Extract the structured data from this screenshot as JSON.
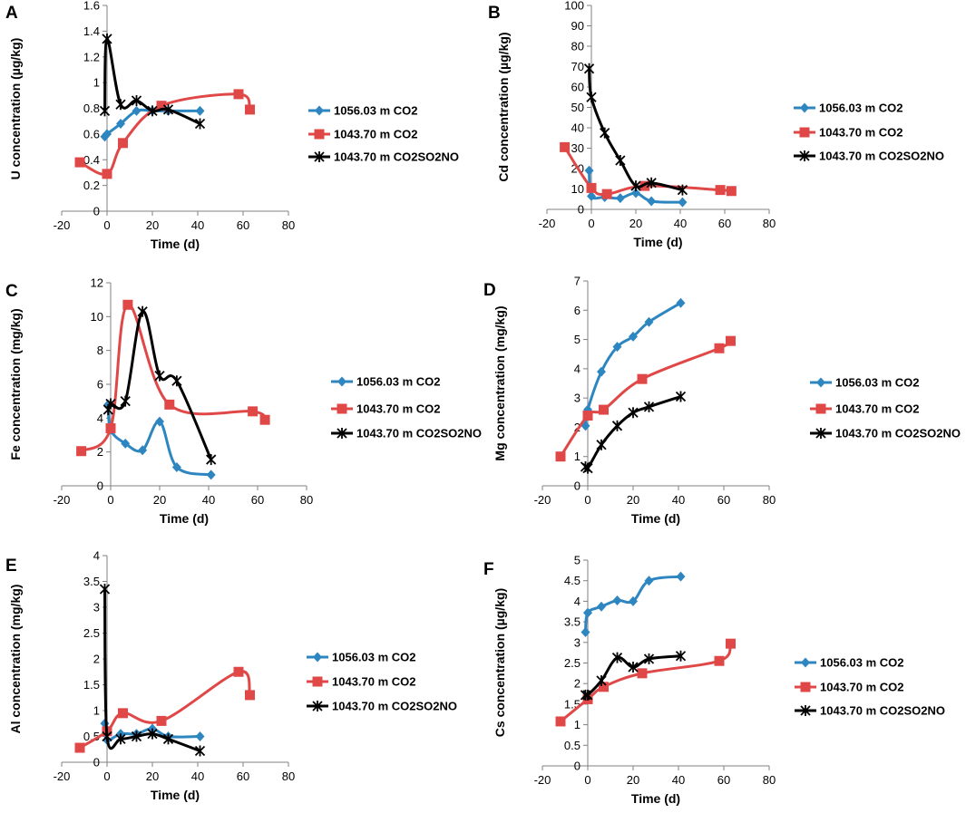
{
  "colors": {
    "blue": "#2E86C1",
    "red": "#E04848",
    "black": "#000000",
    "axis": "#808080"
  },
  "chart_data": [
    {
      "type": "line",
      "panel": "A",
      "xlabel": "Time (d)",
      "ylabel": "U concentration (µg/kg)",
      "xlim": [
        -20,
        80
      ],
      "xticks": [
        -20,
        0,
        20,
        40,
        60,
        80
      ],
      "ylim": [
        0,
        1.6
      ],
      "yticks": [
        0,
        0.2,
        0.4,
        0.6,
        0.8,
        1,
        1.2,
        1.4,
        1.6
      ],
      "series": [
        {
          "name": "1056.03 m CO2",
          "x": [
            -1,
            0,
            6,
            13,
            20,
            27,
            41
          ],
          "y": [
            0.58,
            0.6,
            0.68,
            0.78,
            0.78,
            0.78,
            0.78
          ]
        },
        {
          "name": "1043.70 m CO2",
          "x": [
            -12,
            0,
            7,
            24,
            58,
            63
          ],
          "y": [
            0.38,
            0.29,
            0.53,
            0.82,
            0.91,
            0.79
          ]
        },
        {
          "name": "1043.70 m CO2SO2NO",
          "x": [
            -1,
            0,
            6,
            13,
            20,
            27,
            41
          ],
          "y": [
            0.78,
            1.34,
            0.83,
            0.86,
            0.78,
            0.79,
            0.68
          ]
        }
      ]
    },
    {
      "type": "line",
      "panel": "B",
      "xlabel": "Time (d)",
      "ylabel": "Cd concentration (µg/kg)",
      "xlim": [
        -20,
        80
      ],
      "xticks": [
        -20,
        0,
        20,
        40,
        60,
        80
      ],
      "ylim": [
        0,
        100
      ],
      "yticks": [
        0,
        10,
        20,
        30,
        40,
        50,
        60,
        70,
        80,
        90,
        100
      ],
      "series": [
        {
          "name": "1056.03 m CO2",
          "x": [
            -1,
            0,
            6,
            13,
            20,
            27,
            41
          ],
          "y": [
            19,
            6.5,
            6,
            5.5,
            8,
            4,
            3.5
          ]
        },
        {
          "name": "1043.70 m CO2",
          "x": [
            -12,
            0,
            7,
            24,
            58,
            63
          ],
          "y": [
            30.5,
            10.5,
            7.5,
            11.5,
            9.5,
            9
          ]
        },
        {
          "name": "1043.70 m CO2SO2NO",
          "x": [
            -1,
            0,
            6,
            13,
            20,
            27,
            41
          ],
          "y": [
            69,
            55,
            37.5,
            24,
            11.5,
            13,
            9.5
          ]
        }
      ]
    },
    {
      "type": "line",
      "panel": "C",
      "xlabel": "Time (d)",
      "ylabel": "Fe concentration (mg/kg)",
      "xlim": [
        -20,
        80
      ],
      "xticks": [
        -20,
        0,
        20,
        40,
        60,
        80
      ],
      "ylim": [
        0,
        12
      ],
      "yticks": [
        0,
        2,
        4,
        6,
        8,
        10,
        12
      ],
      "series": [
        {
          "name": "1056.03 m CO2",
          "x": [
            -1,
            0,
            6,
            13,
            20,
            27,
            41
          ],
          "y": [
            4.8,
            3.3,
            2.5,
            2.1,
            3.8,
            1.1,
            0.65
          ]
        },
        {
          "name": "1043.70 m CO2",
          "x": [
            -12,
            0,
            7,
            24,
            58,
            63
          ],
          "y": [
            2.05,
            3.4,
            10.7,
            4.8,
            4.4,
            3.9
          ]
        },
        {
          "name": "1043.70 m CO2SO2NO",
          "x": [
            -1,
            0,
            6,
            13,
            20,
            27,
            41
          ],
          "y": [
            4.5,
            4.85,
            5.0,
            10.3,
            6.5,
            6.2,
            1.55
          ]
        }
      ]
    },
    {
      "type": "line",
      "panel": "D",
      "xlabel": "Time (d)",
      "ylabel": "Mg concentration (mg/kg)",
      "xlim": [
        -20,
        80
      ],
      "xticks": [
        -20,
        0,
        20,
        40,
        60,
        80
      ],
      "ylim": [
        0,
        7
      ],
      "yticks": [
        0,
        1,
        2,
        3,
        4,
        5,
        6,
        7
      ],
      "series": [
        {
          "name": "1056.03 m CO2",
          "x": [
            -1,
            0,
            6,
            13,
            20,
            27,
            41
          ],
          "y": [
            2.05,
            2.6,
            3.9,
            4.75,
            5.1,
            5.6,
            6.25
          ]
        },
        {
          "name": "1043.70 m CO2",
          "x": [
            -12,
            0,
            7,
            24,
            58,
            63
          ],
          "y": [
            1.0,
            2.4,
            2.6,
            3.65,
            4.7,
            4.95
          ]
        },
        {
          "name": "1043.70 m CO2SO2NO",
          "x": [
            -1,
            0,
            6,
            13,
            20,
            27,
            41
          ],
          "y": [
            0.65,
            0.6,
            1.4,
            2.05,
            2.5,
            2.7,
            3.05
          ]
        }
      ]
    },
    {
      "type": "line",
      "panel": "E",
      "xlabel": "Time (d)",
      "ylabel": "Al concentration (mg/kg)",
      "xlim": [
        -20,
        80
      ],
      "xticks": [
        -20,
        0,
        20,
        40,
        60,
        80
      ],
      "ylim": [
        0,
        4
      ],
      "yticks": [
        0,
        0.5,
        1,
        1.5,
        2,
        2.5,
        3,
        3.5,
        4
      ],
      "series": [
        {
          "name": "1056.03 m CO2",
          "x": [
            -1,
            0,
            6,
            13,
            20,
            27,
            41
          ],
          "y": [
            0.75,
            0.43,
            0.55,
            0.55,
            0.65,
            0.5,
            0.5
          ]
        },
        {
          "name": "1043.70 m CO2",
          "x": [
            -12,
            0,
            7,
            24,
            58,
            63
          ],
          "y": [
            0.28,
            0.6,
            0.95,
            0.8,
            1.75,
            1.3
          ]
        },
        {
          "name": "1043.70 m CO2SO2NO",
          "x": [
            -1,
            0,
            6,
            13,
            20,
            27,
            41
          ],
          "y": [
            3.35,
            0.5,
            0.45,
            0.5,
            0.55,
            0.45,
            0.22
          ]
        }
      ]
    },
    {
      "type": "line",
      "panel": "F",
      "xlabel": "Time (d)",
      "ylabel": "Cs concentration (µg/kg)",
      "xlim": [
        -20,
        80
      ],
      "xticks": [
        -20,
        0,
        20,
        40,
        60,
        80
      ],
      "ylim": [
        0,
        5
      ],
      "yticks": [
        0,
        0.5,
        1,
        1.5,
        2,
        2.5,
        3,
        3.5,
        4,
        4.5,
        5
      ],
      "series": [
        {
          "name": "1056.03 m CO2",
          "x": [
            -1,
            0,
            6,
            13,
            20,
            27,
            41
          ],
          "y": [
            3.25,
            3.72,
            3.87,
            4.02,
            4.0,
            4.5,
            4.6
          ]
        },
        {
          "name": "1043.70 m CO2",
          "x": [
            -12,
            0,
            7,
            24,
            58,
            63
          ],
          "y": [
            1.08,
            1.62,
            1.92,
            2.25,
            2.55,
            2.97
          ]
        },
        {
          "name": "1043.70 m CO2SO2NO",
          "x": [
            -1,
            0,
            6,
            13,
            20,
            27,
            41
          ],
          "y": [
            1.72,
            1.72,
            2.07,
            2.63,
            2.4,
            2.6,
            2.67
          ]
        }
      ]
    }
  ]
}
